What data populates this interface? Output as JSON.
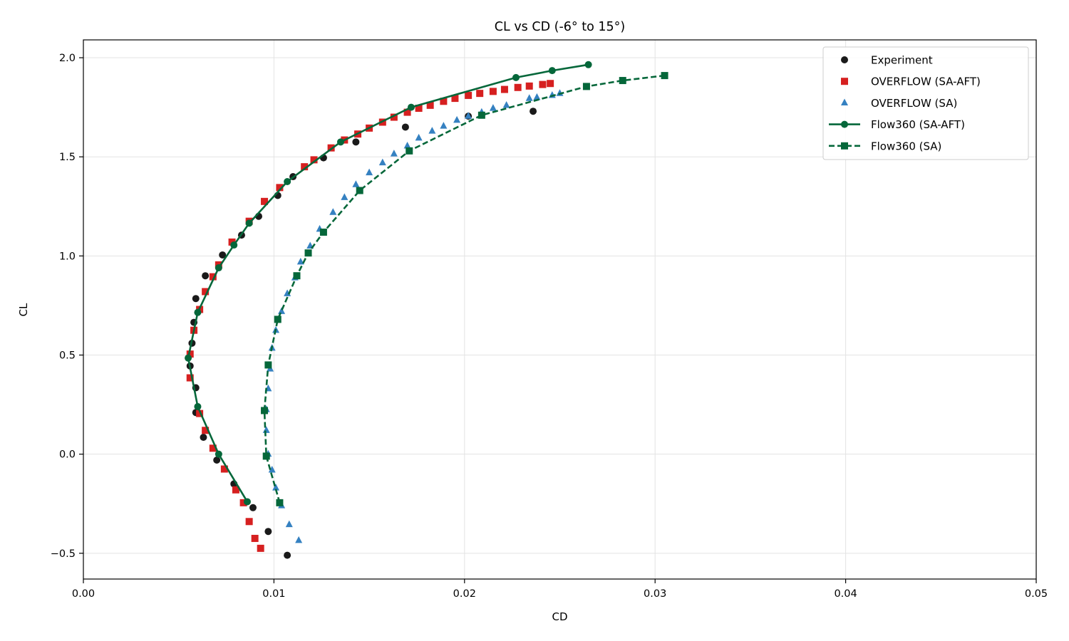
{
  "chart_data": {
    "type": "scatter",
    "title": "CL vs CD (-6° to 15°)",
    "xlabel": "CD",
    "ylabel": "CL",
    "xlim": [
      0.0,
      0.05
    ],
    "ylim": [
      -0.63,
      2.09
    ],
    "x_ticks": [
      0.0,
      0.01,
      0.02,
      0.03,
      0.04,
      0.05
    ],
    "x_tick_labels": [
      "0.00",
      "0.01",
      "0.02",
      "0.03",
      "0.04",
      "0.05"
    ],
    "y_ticks": [
      -0.5,
      0.0,
      0.5,
      1.0,
      1.5,
      2.0
    ],
    "y_tick_labels": [
      "−0.5",
      "0.0",
      "0.5",
      "1.0",
      "1.5",
      "2.0"
    ],
    "grid": true,
    "legend_position": "top-right",
    "series": [
      {
        "name": "Experiment",
        "style": "scatter",
        "marker": "circle",
        "color": "#1a1a1a",
        "points": [
          [
            0.0107,
            -0.51
          ],
          [
            0.0097,
            -0.39
          ],
          [
            0.0089,
            -0.27
          ],
          [
            0.0079,
            -0.15
          ],
          [
            0.007,
            -0.03
          ],
          [
            0.0063,
            0.085
          ],
          [
            0.0059,
            0.21
          ],
          [
            0.0059,
            0.335
          ],
          [
            0.0056,
            0.445
          ],
          [
            0.0057,
            0.56
          ],
          [
            0.0058,
            0.665
          ],
          [
            0.0059,
            0.785
          ],
          [
            0.0064,
            0.9
          ],
          [
            0.0073,
            1.005
          ],
          [
            0.0083,
            1.105
          ],
          [
            0.0092,
            1.2
          ],
          [
            0.0102,
            1.305
          ],
          [
            0.011,
            1.4
          ],
          [
            0.0126,
            1.495
          ],
          [
            0.0143,
            1.575
          ],
          [
            0.0169,
            1.65
          ],
          [
            0.0202,
            1.705
          ],
          [
            0.0236,
            1.73
          ]
        ]
      },
      {
        "name": "OVERFLOW (SA-AFT)",
        "style": "scatter",
        "marker": "square",
        "color": "#d62020",
        "points": [
          [
            0.0093,
            -0.475
          ],
          [
            0.009,
            -0.425
          ],
          [
            0.0087,
            -0.34
          ],
          [
            0.0084,
            -0.245
          ],
          [
            0.008,
            -0.18
          ],
          [
            0.0074,
            -0.075
          ],
          [
            0.0068,
            0.03
          ],
          [
            0.0064,
            0.12
          ],
          [
            0.0061,
            0.205
          ],
          [
            0.0056,
            0.385
          ],
          [
            0.0056,
            0.505
          ],
          [
            0.0058,
            0.625
          ],
          [
            0.0061,
            0.73
          ],
          [
            0.0064,
            0.82
          ],
          [
            0.0068,
            0.895
          ],
          [
            0.0071,
            0.955
          ],
          [
            0.0078,
            1.07
          ],
          [
            0.0087,
            1.175
          ],
          [
            0.0095,
            1.275
          ],
          [
            0.0103,
            1.345
          ],
          [
            0.0116,
            1.45
          ],
          [
            0.0121,
            1.485
          ],
          [
            0.013,
            1.545
          ],
          [
            0.0137,
            1.585
          ],
          [
            0.0144,
            1.615
          ],
          [
            0.015,
            1.645
          ],
          [
            0.0157,
            1.675
          ],
          [
            0.0163,
            1.7
          ],
          [
            0.017,
            1.725
          ],
          [
            0.0176,
            1.745
          ],
          [
            0.0182,
            1.76
          ],
          [
            0.0189,
            1.78
          ],
          [
            0.0195,
            1.795
          ],
          [
            0.0202,
            1.81
          ],
          [
            0.0208,
            1.82
          ],
          [
            0.0215,
            1.83
          ],
          [
            0.0221,
            1.84
          ],
          [
            0.0228,
            1.85
          ],
          [
            0.0234,
            1.857
          ],
          [
            0.0241,
            1.865
          ],
          [
            0.0245,
            1.87
          ]
        ]
      },
      {
        "name": "OVERFLOW (SA)",
        "style": "scatter",
        "marker": "triangle",
        "color": "#3581c1",
        "points": [
          [
            0.0113,
            -0.435
          ],
          [
            0.0108,
            -0.355
          ],
          [
            0.0104,
            -0.26
          ],
          [
            0.0101,
            -0.17
          ],
          [
            0.0099,
            -0.08
          ],
          [
            0.0097,
            0.0
          ],
          [
            0.0096,
            0.12
          ],
          [
            0.0096,
            0.225
          ],
          [
            0.0097,
            0.33
          ],
          [
            0.0098,
            0.43
          ],
          [
            0.0099,
            0.535
          ],
          [
            0.0101,
            0.625
          ],
          [
            0.0104,
            0.72
          ],
          [
            0.0107,
            0.81
          ],
          [
            0.0111,
            0.89
          ],
          [
            0.0114,
            0.97
          ],
          [
            0.0119,
            1.05
          ],
          [
            0.0124,
            1.135
          ],
          [
            0.0131,
            1.22
          ],
          [
            0.0137,
            1.295
          ],
          [
            0.0143,
            1.36
          ],
          [
            0.015,
            1.42
          ],
          [
            0.0157,
            1.47
          ],
          [
            0.0163,
            1.515
          ],
          [
            0.017,
            1.555
          ],
          [
            0.0176,
            1.595
          ],
          [
            0.0183,
            1.63
          ],
          [
            0.0189,
            1.655
          ],
          [
            0.0196,
            1.685
          ],
          [
            0.0202,
            1.705
          ],
          [
            0.0209,
            1.725
          ],
          [
            0.0215,
            1.745
          ],
          [
            0.0222,
            1.76
          ],
          [
            0.0234,
            1.795
          ],
          [
            0.0238,
            1.8
          ],
          [
            0.0246,
            1.81
          ],
          [
            0.025,
            1.82
          ]
        ]
      },
      {
        "name": "Flow360 (SA-AFT)",
        "style": "line-solid",
        "marker": "circle",
        "color": "#05673a",
        "points": [
          [
            0.0086,
            -0.24
          ],
          [
            0.0071,
            -0.0
          ],
          [
            0.006,
            0.24
          ],
          [
            0.0055,
            0.485
          ],
          [
            0.006,
            0.715
          ],
          [
            0.0071,
            0.94
          ],
          [
            0.0079,
            1.055
          ],
          [
            0.0087,
            1.165
          ],
          [
            0.0107,
            1.375
          ],
          [
            0.0135,
            1.575
          ],
          [
            0.0172,
            1.75
          ],
          [
            0.0227,
            1.9
          ],
          [
            0.0246,
            1.935
          ],
          [
            0.0265,
            1.965
          ]
        ]
      },
      {
        "name": "Flow360 (SA)",
        "style": "line-dashed",
        "marker": "square",
        "color": "#05673a",
        "points": [
          [
            0.0103,
            -0.245
          ],
          [
            0.0096,
            -0.01
          ],
          [
            0.0095,
            0.22
          ],
          [
            0.0097,
            0.45
          ],
          [
            0.0102,
            0.68
          ],
          [
            0.0112,
            0.9
          ],
          [
            0.0118,
            1.015
          ],
          [
            0.0126,
            1.12
          ],
          [
            0.0145,
            1.33
          ],
          [
            0.0171,
            1.53
          ],
          [
            0.0209,
            1.71
          ],
          [
            0.0264,
            1.855
          ],
          [
            0.0283,
            1.885
          ],
          [
            0.0305,
            1.91
          ]
        ]
      }
    ]
  }
}
